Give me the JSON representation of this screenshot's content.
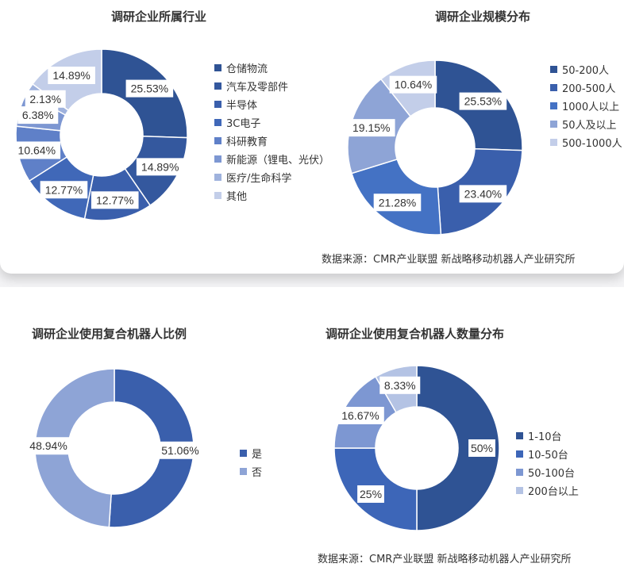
{
  "source_top": "数据来源：CMR产业联盟 新战略移动机器人产业研究所",
  "source_bottom": "数据来源：CMR产业联盟 新战略移动机器人产业研究所",
  "chart_data": [
    {
      "type": "pie",
      "donut": true,
      "title": "调研企业所属行业",
      "categories": [
        "仓储物流",
        "汽车及零部件",
        "半导体",
        "3C电子",
        "科研教育",
        "新能源（锂电、光伏）",
        "医疗/生命科学",
        "其他"
      ],
      "values": [
        25.53,
        14.89,
        12.77,
        12.77,
        10.64,
        6.38,
        2.13,
        14.89
      ],
      "labels": [
        "25.53%",
        "14.89%",
        "12.77%",
        "12.77%",
        "10.64%",
        "6.38%",
        "2.13%",
        "14.89%"
      ],
      "colors": [
        "#2f5394",
        "#34589e",
        "#3a5fac",
        "#4068b8",
        "#5f80c8",
        "#7d97d2",
        "#9fb2dd",
        "#c3cee9"
      ],
      "legend": "right"
    },
    {
      "type": "pie",
      "donut": true,
      "title": "调研企业规模分布",
      "categories": [
        "50-200人",
        "200-500人",
        "1000人以上",
        "50人及以上",
        "500-1000人"
      ],
      "values": [
        25.53,
        23.4,
        21.28,
        19.15,
        10.64
      ],
      "labels": [
        "25.53%",
        "23.40%",
        "21.28%",
        "19.15%",
        "10.64%"
      ],
      "colors": [
        "#2f5394",
        "#3a5fac",
        "#4472c4",
        "#8ea4d6",
        "#c3cee9"
      ],
      "legend": "right"
    },
    {
      "type": "pie",
      "donut": true,
      "title": "调研企业使用复合机器人比例",
      "categories": [
        "是",
        "否"
      ],
      "values": [
        51.06,
        48.94
      ],
      "labels": [
        "51.06%",
        "48.94%"
      ],
      "colors": [
        "#3a5fac",
        "#8ea4d6"
      ],
      "legend": "right"
    },
    {
      "type": "pie",
      "donut": true,
      "title": "调研企业使用复合机器人数量分布",
      "categories": [
        "1-10台",
        "10-50台",
        "50-100台",
        "200台以上"
      ],
      "values": [
        50,
        25,
        16.67,
        8.33
      ],
      "labels": [
        "50%",
        "25%",
        "16.67%",
        "8.33%"
      ],
      "colors": [
        "#2f5394",
        "#3d66b8",
        "#7d97d2",
        "#b4c3e4"
      ],
      "legend": "right"
    }
  ]
}
